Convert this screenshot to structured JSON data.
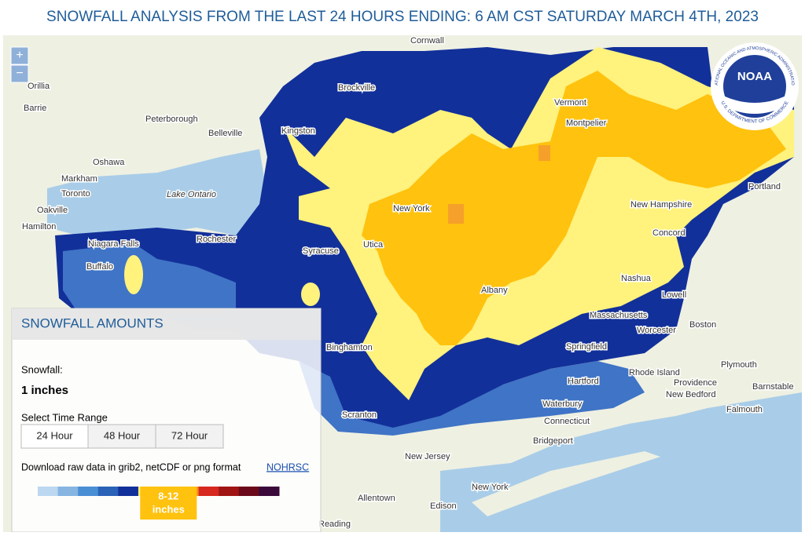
{
  "header": {
    "title": "SNOWFALL ANALYSIS FROM THE LAST 24 HOURS ENDING: 6 AM CST SATURDAY MARCH 4TH, 2023"
  },
  "zoom": {
    "in": "+",
    "out": "−"
  },
  "logo": {
    "text": "NOAA",
    "ring_top": "NATIONAL OCEANIC AND ATMOSPHERIC ADMINISTRATION",
    "ring_bottom": "U.S. DEPARTMENT OF COMMERCE"
  },
  "map": {
    "labels": [
      "Cornwall",
      "Orillia",
      "Barrie",
      "Peterborough",
      "Belleville",
      "Kingston",
      "Brockville",
      "Oshawa",
      "Markham",
      "Toronto",
      "Lake Ontario",
      "Oakville",
      "Hamilton",
      "Niagara Falls",
      "Rochester",
      "Buffalo",
      "Syracuse",
      "Utica",
      "Vermont",
      "Montpelier",
      "New York",
      "New Hampshire",
      "Portland",
      "Concord",
      "Albany",
      "Nashua",
      "Lowell",
      "Massachusetts",
      "Boston",
      "Worcester",
      "Springfield",
      "Binghamton",
      "Hartford",
      "Rhode Island",
      "Providence",
      "New Bedford",
      "Plymouth",
      "Barnstable",
      "Falmouth",
      "Waterbury",
      "Connecticut",
      "Bridgeport",
      "New Jersey",
      "Scranton",
      "New York",
      "Allentown",
      "Edison",
      "Reading"
    ]
  },
  "panel": {
    "title": "SNOWFALL AMOUNTS",
    "snowfall_label": "Snowfall:",
    "snowfall_value": "1 inches",
    "range_label": "Select Time Range",
    "buttons": [
      "24 Hour",
      "48 Hour",
      "72 Hour"
    ],
    "download_text": "Download raw data in grib2, netCDF or png format",
    "download_link": "NOHRSC",
    "legend": {
      "colors": [
        "#bcd7f0",
        "#86b5e2",
        "#4a8fd4",
        "#2a62b8",
        "#12309a",
        "#fff27d",
        "#ffc20e",
        "#f58b1f",
        "#d6281f",
        "#a01414",
        "#6b0a1a",
        "#3a0a3a"
      ],
      "highlight_range": "8-12",
      "highlight_unit": "inches"
    }
  }
}
